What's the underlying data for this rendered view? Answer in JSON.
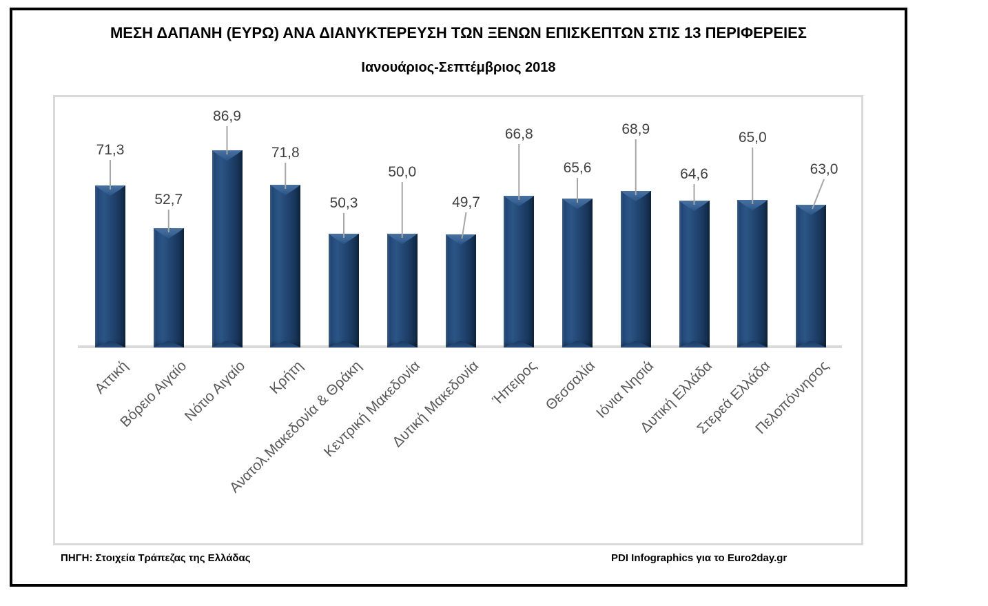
{
  "title": "ΜΕΣΗ ΔΑΠΑΝΗ (ΕΥΡΩ) ΑΝΑ ΔΙΑΝΥΚΤΕΡΕΥΣΗ ΤΩΝ ΞΕΝΩΝ ΕΠΙΣΚΕΠΤΩΝ ΣΤΙΣ 13 ΠΕΡΙΦΕΡΕΙΕΣ",
  "subtitle": "Ιανουάριος-Σεπτέμβριος 2018",
  "footer": {
    "source": "ΠΗΓΗ: Στοιχεία Τράπεζας της Ελλάδας",
    "credit": "PDI Infographics για το Euro2day.gr"
  },
  "colors": {
    "bar_body": "#1F4068",
    "bar_highlight": "#48719F",
    "bar_shadow": "#112944",
    "value_label": "#404040",
    "category_label": "#595959",
    "leader_line": "#A6A6A6",
    "axis_line": "#D9D9D9",
    "plot_border": "#D9D9D9",
    "frame_border": "#000000",
    "title_text": "#000000"
  },
  "chart_data": {
    "type": "bar",
    "title": "ΜΕΣΗ ΔΑΠΑΝΗ (ΕΥΡΩ) ΑΝΑ ΔΙΑΝΥΚΤΕΡΕΥΣΗ ΤΩΝ ΞΕΝΩΝ ΕΠΙΣΚΕΠΤΩΝ ΣΤΙΣ 13 ΠΕΡΙΦΕΡΕΙΕΣ",
    "subtitle": "Ιανουάριος-Σεπτέμβριος 2018",
    "unit": "ΕΥΡΩ (euro per overnight stay)",
    "categories": [
      "Αττική",
      "Βόρειο Αιγαίο",
      "Νότιο Αιγαίο",
      "Κρήτη",
      "Ανατολ.Μακεδονία & Θράκη",
      "Κεντρική Μακεδονία",
      "Δυτική Μακεδονία",
      "Ήπειρος",
      "Θεσσαλία",
      "Ιόνια Νησιά",
      "Δυτική Ελλάδα",
      "Στερεά Ελλάδα",
      "Πελοπόννησος"
    ],
    "values": [
      71.3,
      52.7,
      86.9,
      71.8,
      50.3,
      50.0,
      49.7,
      66.8,
      65.6,
      68.9,
      64.6,
      65.0,
      63.0
    ],
    "value_labels": [
      "71,3",
      "52,7",
      "86,9",
      "71,8",
      "50,3",
      "50,0",
      "49,7",
      "66,8",
      "65,6",
      "68,9",
      "64,6",
      "65,0",
      "63,0"
    ],
    "ylim": [
      0,
      110
    ],
    "grid": false,
    "legend": false,
    "data_labels": "above bars, connected with gray leader lines",
    "category_axis": "rotated 45 degrees"
  }
}
